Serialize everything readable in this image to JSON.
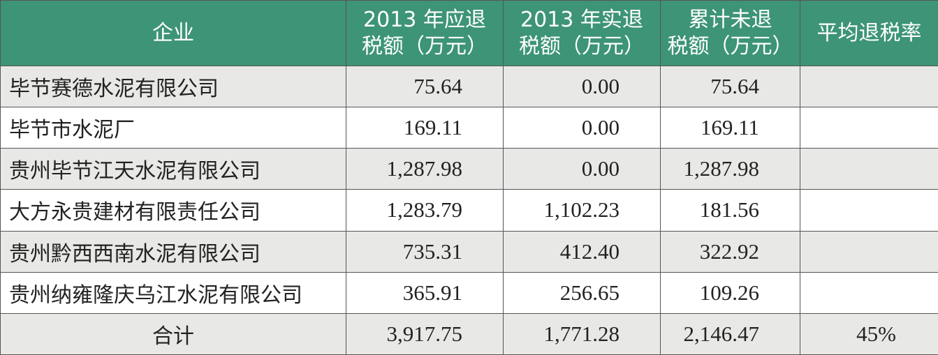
{
  "table": {
    "header": [
      [
        "企业"
      ],
      [
        "2013 年应退",
        "税额（万元）"
      ],
      [
        "2013 年实退",
        "税额（万元）"
      ],
      [
        "累计未退",
        "税额（万元）"
      ],
      [
        "平均退税率"
      ]
    ],
    "rows": [
      [
        "毕节赛德水泥有限公司",
        "75.64",
        "0.00",
        "75.64"
      ],
      [
        "毕节市水泥厂",
        "169.11",
        "0.00",
        "169.11"
      ],
      [
        "贵州毕节江天水泥有限公司",
        "1,287.98",
        "0.00",
        "1,287.98"
      ],
      [
        "大方永贵建材有限责任公司",
        "1,283.79",
        "1,102.23",
        "181.56"
      ],
      [
        "贵州黔西西南水泥有限公司",
        "735.31",
        "412.40",
        "322.92"
      ],
      [
        "贵州纳雍隆庆乌江水泥有限公司",
        "365.91",
        "256.65",
        "109.26"
      ]
    ],
    "total": [
      "合计",
      "3,917.75",
      "1,771.28",
      "2,146.47",
      "45%"
    ]
  }
}
